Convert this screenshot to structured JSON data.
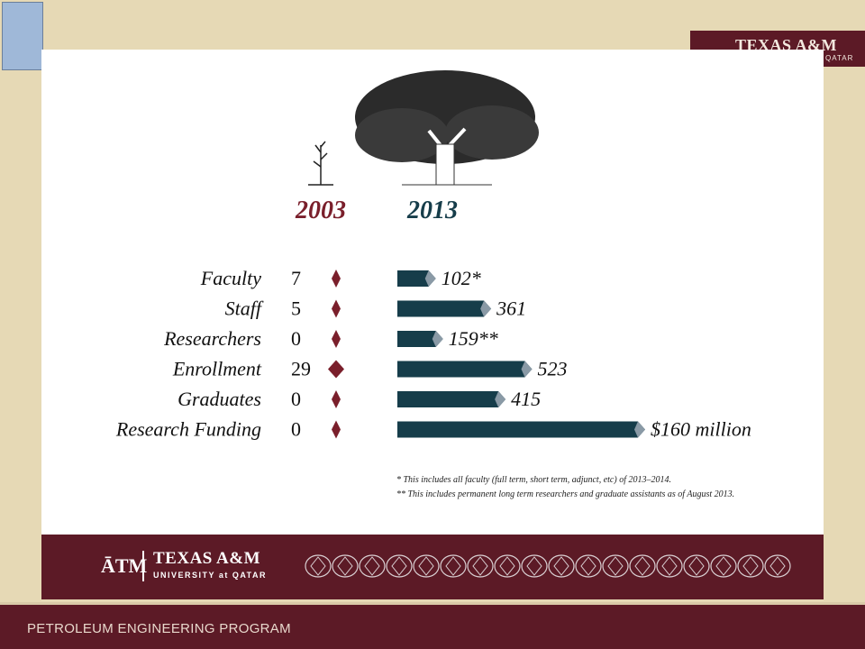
{
  "header": {
    "banner_text": "TEXAS A&M",
    "banner_sub": "QATAR"
  },
  "chart_data": {
    "type": "bar",
    "column_headers": [
      "2003",
      "2013"
    ],
    "categories": [
      "Faculty",
      "Staff",
      "Researchers",
      "Enrollment",
      "Graduates",
      "Research Funding"
    ],
    "values_2003": [
      "7",
      "5",
      "0",
      "29",
      "0",
      "0"
    ],
    "labels_2013": [
      "102*",
      "361",
      "159**",
      "523",
      "415",
      "$160 million"
    ],
    "bar_lengths_2013": [
      0.13,
      0.36,
      0.16,
      0.53,
      0.42,
      1.0
    ],
    "colors": {
      "2003": "#7a1f2b",
      "2013": "#163d4a",
      "accent": "#8a9aa6"
    }
  },
  "footnotes": [
    "* This includes all faculty (full term, short term, adjunct, etc) of 2013–2014.",
    "** This includes permanent long term researchers and graduate assistants as of August 2013."
  ],
  "footer": {
    "logo_mark": "ĀTM",
    "wordmark": "TEXAS A&M",
    "subline": "UNIVERSITY at QATAR"
  },
  "program_title": "PETROLEUM ENGINEERING PROGRAM"
}
